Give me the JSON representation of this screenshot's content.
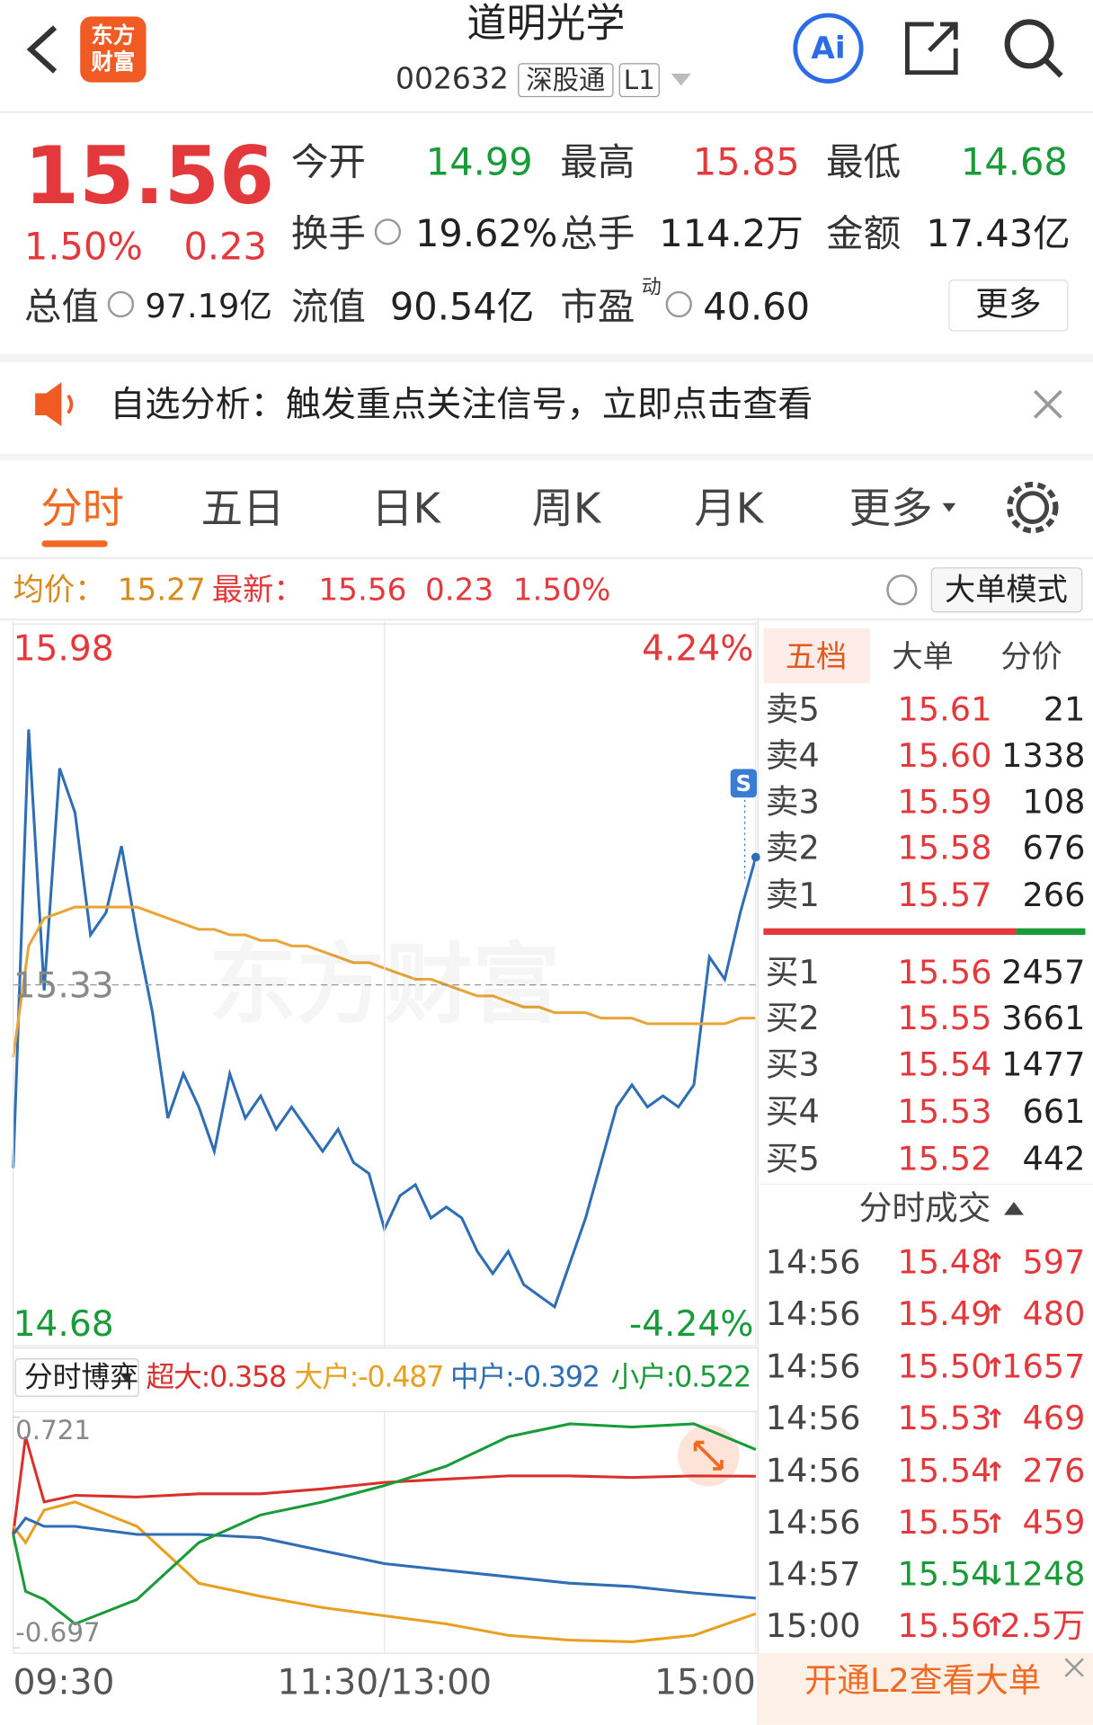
{
  "header": {
    "logo": [
      "东方",
      "财富"
    ],
    "title": "道明光学",
    "code": "002632",
    "tags": [
      "深股通",
      "L1"
    ],
    "ai": "Ai"
  },
  "quote": {
    "price": "15.56",
    "change_pct": "1.50%",
    "change": "0.23",
    "more": "更多",
    "stats": [
      {
        "label": "今开",
        "value": "14.99"
      },
      {
        "label": "最高",
        "value": "15.85"
      },
      {
        "label": "最低",
        "value": "14.68"
      },
      {
        "label": "换手",
        "value": "19.62%"
      },
      {
        "label": "总手",
        "value": "114.2万"
      },
      {
        "label": "金额",
        "value": "17.43亿"
      },
      {
        "label": "总值",
        "value": "97.19亿"
      },
      {
        "label": "流值",
        "value": "90.54亿"
      },
      {
        "label": "市盈",
        "sup": "动",
        "value": "40.60"
      }
    ]
  },
  "banner": {
    "text": "自选分析：触发重点关注信号，立即点击查看"
  },
  "tabs": {
    "items": [
      "分时",
      "五日",
      "日K",
      "周K",
      "月K"
    ],
    "more": "更多"
  },
  "info": {
    "avg_label": "均价：",
    "avg": "15.27",
    "latest_label": "最新：",
    "latest": "15.56",
    "change": "0.23",
    "pct": "1.50%",
    "mode": "大单模式"
  },
  "order_book": {
    "tabs": [
      "五档",
      "大单",
      "分价"
    ],
    "asks": [
      {
        "label": "卖5",
        "price": "15.61",
        "volume": "21"
      },
      {
        "label": "卖4",
        "price": "15.60",
        "volume": "1338"
      },
      {
        "label": "卖3",
        "price": "15.59",
        "volume": "108"
      },
      {
        "label": "卖2",
        "price": "15.58",
        "volume": "676"
      },
      {
        "label": "卖1",
        "price": "15.57",
        "volume": "266"
      }
    ],
    "bids": [
      {
        "label": "买1",
        "price": "15.56",
        "volume": "2457"
      },
      {
        "label": "买2",
        "price": "15.55",
        "volume": "3661"
      },
      {
        "label": "买3",
        "price": "15.54",
        "volume": "1477"
      },
      {
        "label": "买4",
        "price": "15.53",
        "volume": "661"
      },
      {
        "label": "买5",
        "price": "15.52",
        "volume": "442"
      }
    ]
  },
  "trades": {
    "title": "分时成交",
    "rows": [
      {
        "time": "14:56",
        "price": "15.48",
        "dir": "↑",
        "volume": "597",
        "color": "#e4393c"
      },
      {
        "time": "14:56",
        "price": "15.49",
        "dir": "↑",
        "volume": "480",
        "color": "#e4393c"
      },
      {
        "time": "14:56",
        "price": "15.50",
        "dir": "↑",
        "volume": "1657",
        "color": "#e4393c"
      },
      {
        "time": "14:56",
        "price": "15.53",
        "dir": "↑",
        "volume": "469",
        "color": "#e4393c"
      },
      {
        "time": "14:56",
        "price": "15.54",
        "dir": "↑",
        "volume": "276",
        "color": "#e4393c"
      },
      {
        "time": "14:56",
        "price": "15.55",
        "dir": "↑",
        "volume": "459",
        "color": "#e4393c"
      },
      {
        "time": "14:57",
        "price": "15.54",
        "dir": "↓",
        "volume": "1248",
        "color": "#1a9b3a"
      },
      {
        "time": "15:00",
        "price": "15.56",
        "dir": "↑",
        "volume": "2.5万",
        "color": "#e4393c"
      }
    ]
  },
  "promo": "开通L2查看大单",
  "chart_data": [
    {
      "type": "line",
      "watermark": "东方财富",
      "marker": "S",
      "grid": true,
      "x": [
        0,
        5,
        10,
        15,
        20,
        25,
        30,
        35,
        40,
        45,
        50,
        55,
        60,
        65,
        70,
        75,
        80,
        85,
        90,
        95,
        100,
        105,
        110,
        115,
        120,
        125,
        130,
        135,
        140,
        145,
        150,
        155,
        160,
        165,
        170,
        175,
        180,
        185,
        190,
        195,
        200,
        205,
        210,
        215,
        220,
        225,
        230,
        235,
        240
      ],
      "xlim": [
        0,
        240
      ],
      "xticks": [
        {
          "value": 0,
          "label": "09:30"
        },
        {
          "value": 120,
          "label": "11:30/13:00"
        },
        {
          "value": 240,
          "label": "15:00"
        }
      ],
      "ylim": [
        14.68,
        15.98
      ],
      "yticks": [
        14.68,
        15.33,
        15.98
      ],
      "y2lim": [
        -4.24,
        4.24
      ],
      "y2ticks": [
        {
          "value": -4.24,
          "label": "-4.24%"
        },
        {
          "value": 4.24,
          "label": "4.24%"
        }
      ],
      "series": [
        {
          "color": "#2f6db5",
          "values": [
            15.0,
            15.79,
            15.32,
            15.72,
            15.64,
            15.42,
            15.46,
            15.58,
            15.42,
            15.28,
            15.09,
            15.17,
            15.11,
            15.03,
            15.17,
            15.09,
            15.13,
            15.07,
            15.11,
            15.07,
            15.03,
            15.07,
            15.01,
            14.99,
            14.89,
            14.95,
            14.97,
            14.91,
            14.93,
            14.91,
            14.85,
            14.81,
            14.85,
            14.79,
            14.77,
            14.75,
            14.83,
            14.91,
            15.01,
            15.11,
            15.15,
            15.11,
            15.13,
            15.11,
            15.15,
            15.38,
            15.34,
            15.46,
            15.56
          ]
        },
        {
          "color": "#e9a53a",
          "values": [
            15.2,
            15.4,
            15.45,
            15.46,
            15.47,
            15.47,
            15.47,
            15.47,
            15.47,
            15.46,
            15.45,
            15.44,
            15.43,
            15.43,
            15.42,
            15.42,
            15.41,
            15.41,
            15.4,
            15.4,
            15.39,
            15.38,
            15.37,
            15.37,
            15.36,
            15.35,
            15.34,
            15.34,
            15.33,
            15.32,
            15.31,
            15.31,
            15.3,
            15.29,
            15.29,
            15.28,
            15.28,
            15.28,
            15.27,
            15.27,
            15.27,
            15.26,
            15.26,
            15.26,
            15.26,
            15.26,
            15.26,
            15.27,
            15.27
          ]
        }
      ]
    },
    {
      "type": "line",
      "title": "分时博弈",
      "x": [
        0,
        4,
        10,
        20,
        40,
        60,
        80,
        100,
        120,
        140,
        160,
        180,
        200,
        220,
        240
      ],
      "xlim": [
        0,
        240
      ],
      "ylim": [
        -0.697,
        0.721
      ],
      "yticks": [
        -0.697,
        0.721
      ],
      "series": [
        {
          "name": "超大:",
          "latest": 0.358,
          "color": "#d9302c",
          "values": [
            0.0,
            0.6,
            0.2,
            0.24,
            0.23,
            0.25,
            0.25,
            0.28,
            0.32,
            0.34,
            0.36,
            0.36,
            0.35,
            0.36,
            0.358
          ]
        },
        {
          "name": "大户:",
          "latest": -0.487,
          "color": "#e8a020",
          "values": [
            0.05,
            -0.05,
            0.15,
            0.2,
            0.05,
            -0.3,
            -0.38,
            -0.45,
            -0.5,
            -0.55,
            -0.62,
            -0.65,
            -0.66,
            -0.62,
            -0.487
          ]
        },
        {
          "name": "中户:",
          "latest": -0.392,
          "color": "#2f6db5",
          "values": [
            0.0,
            0.1,
            0.05,
            0.05,
            0.0,
            0.0,
            -0.02,
            -0.1,
            -0.18,
            -0.22,
            -0.26,
            -0.3,
            -0.32,
            -0.36,
            -0.392
          ]
        },
        {
          "name": "小户:",
          "latest": 0.522,
          "color": "#1a9b3a",
          "values": [
            0.0,
            -0.35,
            -0.4,
            -0.55,
            -0.4,
            -0.05,
            0.12,
            0.2,
            0.3,
            0.42,
            0.6,
            0.68,
            0.66,
            0.68,
            0.522
          ]
        }
      ]
    }
  ]
}
